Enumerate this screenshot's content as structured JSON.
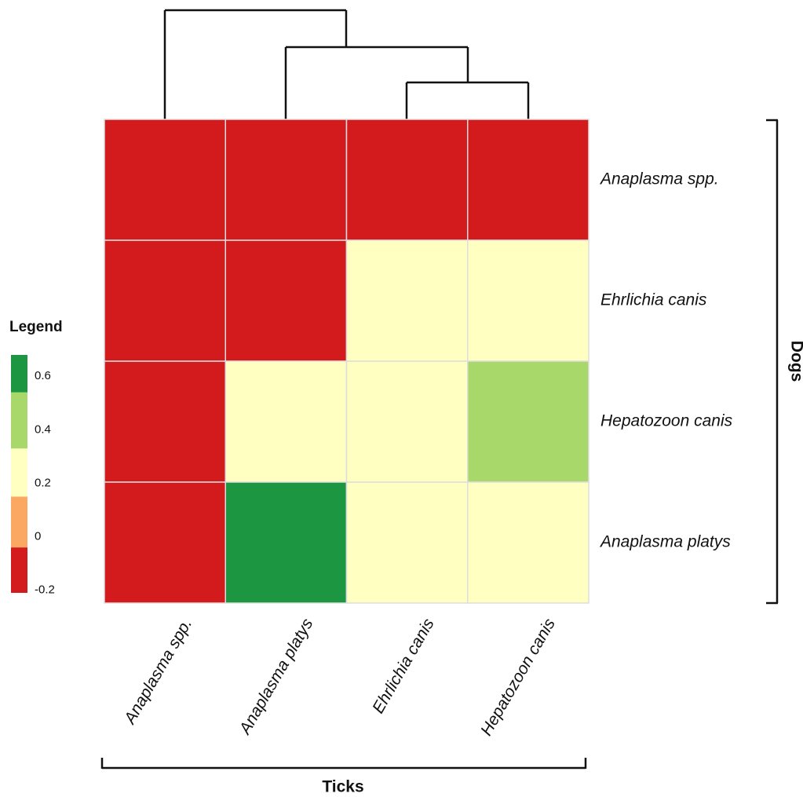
{
  "chart_data": {
    "type": "heatmap",
    "rows": [
      "Anaplasma spp.",
      "Ehrlichia canis",
      "Hepatozoon  canis",
      "Anaplasma  platys"
    ],
    "columns": [
      "Anaplasma spp.",
      "Anaplasma platys",
      "Ehrlichia canis",
      "Hepatozoon  canis"
    ],
    "values": [
      [
        -0.1,
        -0.1,
        -0.1,
        -0.1
      ],
      [
        -0.1,
        -0.1,
        0.25,
        0.25
      ],
      [
        -0.1,
        0.25,
        0.25,
        0.45
      ],
      [
        -0.1,
        0.65,
        0.25,
        0.25
      ]
    ],
    "row_axis_label": "Dogs",
    "column_axis_label": "Ticks",
    "legend_title": "Legend",
    "color_scale": {
      "breaks": [
        -0.21,
        -0.04,
        0.15,
        0.33,
        0.54,
        0.68
      ],
      "colors": [
        "#d31a1c",
        "#fba862",
        "#ffffc2",
        "#a8d86a",
        "#1d9642"
      ],
      "ticks": [
        -0.2,
        0,
        0.2,
        0.4,
        0.6
      ]
    }
  }
}
